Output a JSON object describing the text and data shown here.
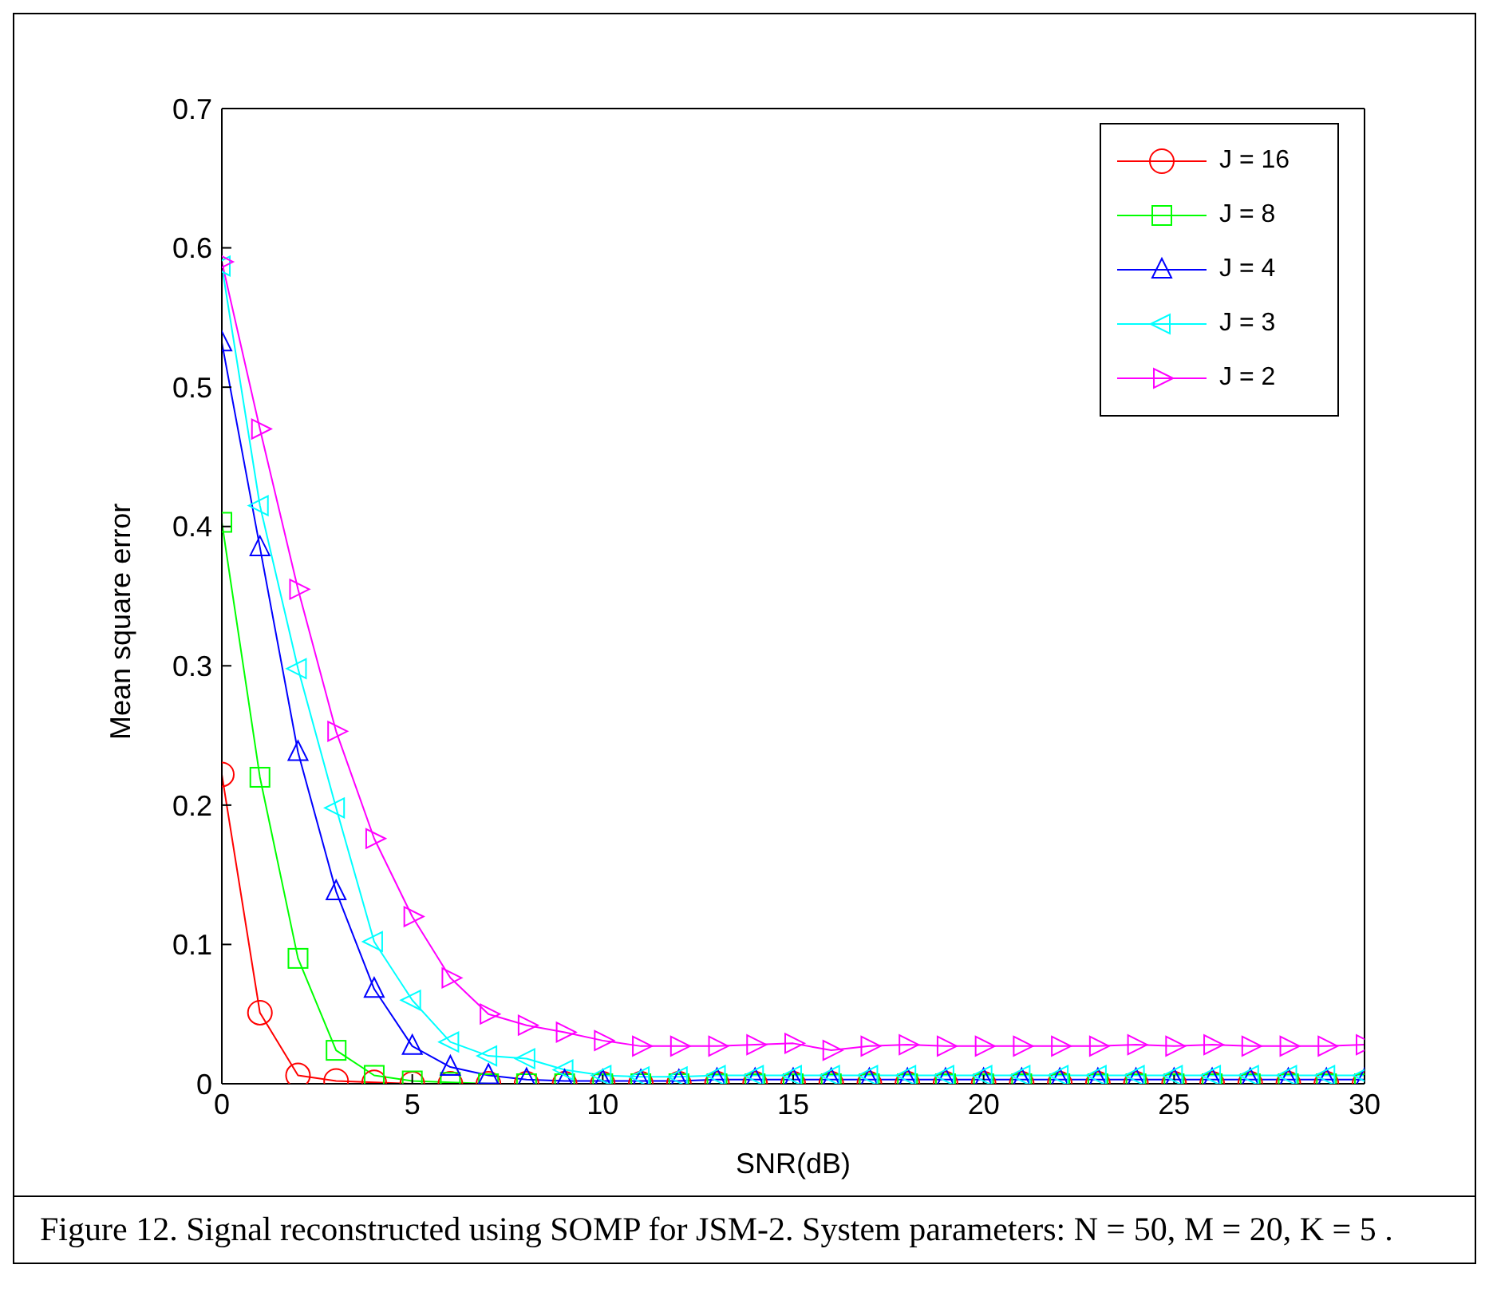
{
  "chart_data": {
    "type": "line",
    "xlabel": "SNR(dB)",
    "ylabel": "Mean square error",
    "x": [
      0,
      1,
      2,
      3,
      4,
      5,
      6,
      7,
      8,
      9,
      10,
      11,
      12,
      13,
      14,
      15,
      16,
      17,
      18,
      19,
      20,
      21,
      22,
      23,
      24,
      25,
      26,
      27,
      28,
      29,
      30
    ],
    "series": [
      {
        "name": "J = 16",
        "color": "#ff0000",
        "marker": "circle",
        "values": [
          0.222,
          0.051,
          0.006,
          0.002,
          0.001,
          0,
          0,
          0,
          0,
          0,
          0,
          0,
          0,
          0,
          0,
          0,
          0,
          0,
          0,
          0,
          0,
          0,
          0,
          0,
          0,
          0,
          0,
          0,
          0,
          0,
          0
        ]
      },
      {
        "name": "J = 8",
        "color": "#00ff00",
        "marker": "square",
        "values": [
          0.403,
          0.22,
          0.09,
          0.024,
          0.006,
          0.002,
          0.001,
          0,
          0,
          0,
          0,
          0,
          0,
          0,
          0,
          0,
          0,
          0,
          0,
          0,
          0,
          0,
          0,
          0,
          0,
          0,
          0,
          0,
          0,
          0,
          0
        ]
      },
      {
        "name": "J = 4",
        "color": "#0000ff",
        "marker": "triangle",
        "values": [
          0.532,
          0.385,
          0.238,
          0.138,
          0.068,
          0.027,
          0.012,
          0.006,
          0.003,
          0.002,
          0.002,
          0.002,
          0.002,
          0.003,
          0.003,
          0.003,
          0.003,
          0.003,
          0.003,
          0.003,
          0.003,
          0.003,
          0.003,
          0.003,
          0.003,
          0.003,
          0.003,
          0.003,
          0.003,
          0.003,
          0.003
        ]
      },
      {
        "name": "J = 3",
        "color": "#00ffff",
        "marker": "triangle-left",
        "values": [
          0.587,
          0.415,
          0.298,
          0.198,
          0.102,
          0.06,
          0.03,
          0.02,
          0.018,
          0.01,
          0.006,
          0.005,
          0.005,
          0.006,
          0.006,
          0.006,
          0.006,
          0.006,
          0.006,
          0.006,
          0.006,
          0.006,
          0.006,
          0.006,
          0.006,
          0.006,
          0.006,
          0.006,
          0.006,
          0.006,
          0.006
        ]
      },
      {
        "name": "J = 2",
        "color": "#ff00ff",
        "marker": "triangle-right",
        "values": [
          0.59,
          0.47,
          0.355,
          0.253,
          0.176,
          0.12,
          0.076,
          0.05,
          0.042,
          0.037,
          0.031,
          0.027,
          0.027,
          0.027,
          0.028,
          0.029,
          0.024,
          0.027,
          0.028,
          0.027,
          0.027,
          0.027,
          0.027,
          0.027,
          0.028,
          0.027,
          0.028,
          0.027,
          0.027,
          0.027,
          0.028
        ]
      }
    ],
    "xlim": [
      0,
      30
    ],
    "xticks": [
      0,
      5,
      10,
      15,
      20,
      25,
      30
    ],
    "ylim": [
      0,
      0.7
    ],
    "yticks": [
      0,
      0.1,
      0.2,
      0.3,
      0.4,
      0.5,
      0.6,
      0.7
    ],
    "grid": false,
    "legend": "top right",
    "line_style": "solid",
    "annotations": [
      "Figure 12. Signal reconstructed using SOMP for JSM-2. System parameters: N = 50, M = 20, K = 5 ."
    ]
  }
}
